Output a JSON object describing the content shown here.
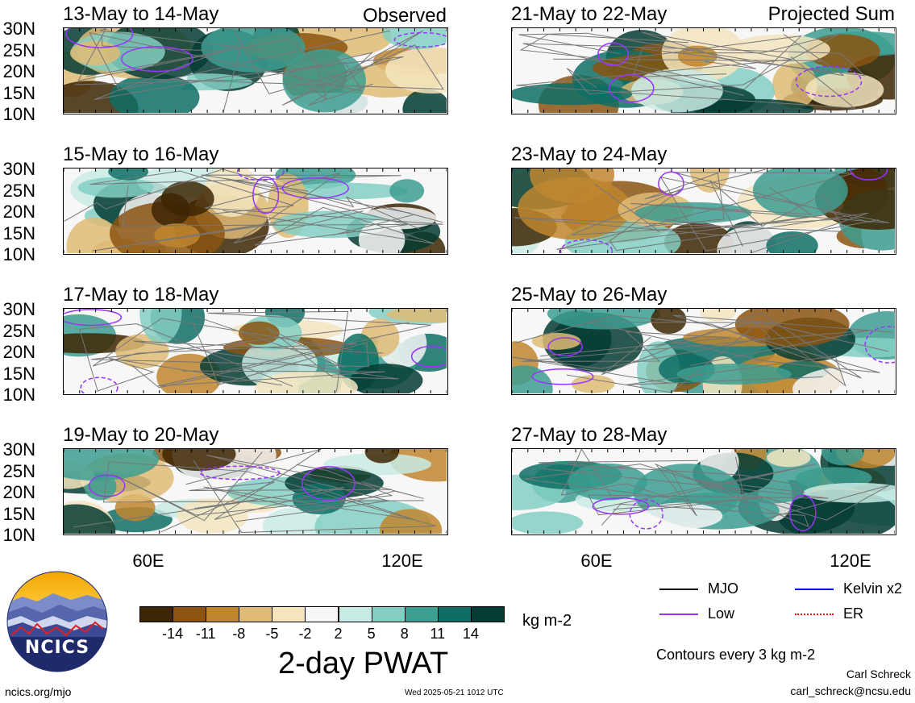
{
  "panels": [
    {
      "title": "13-May to 14-May",
      "tag": "Observed",
      "seed": 3
    },
    {
      "title": "15-May to 16-May",
      "tag": "",
      "seed": 7
    },
    {
      "title": "17-May to 18-May",
      "tag": "",
      "seed": 11
    },
    {
      "title": "19-May to 20-May",
      "tag": "",
      "seed": 17
    },
    {
      "title": "21-May to 22-May",
      "tag": "Projected Sum",
      "seed": 23
    },
    {
      "title": "23-May to 24-May",
      "tag": "",
      "seed": 29
    },
    {
      "title": "25-May to 26-May",
      "tag": "",
      "seed": 31
    },
    {
      "title": "27-May to 28-May",
      "tag": "",
      "seed": 37
    }
  ],
  "lat_labels": [
    "30N",
    "25N",
    "20N",
    "15N",
    "10N"
  ],
  "lon_labels": [
    "60E",
    "120E"
  ],
  "colorbar": {
    "colors": [
      "#3d2603",
      "#8b5410",
      "#c0862f",
      "#dfbb76",
      "#f5e5bf",
      "#f7f7f7",
      "#c9ebe5",
      "#84cfc3",
      "#3d9e92",
      "#0e6e65",
      "#053c33"
    ],
    "labels": [
      "-14",
      "-11",
      "-8",
      "-5",
      "-2",
      "2",
      "5",
      "8",
      "11",
      "14"
    ],
    "units": "kg m-2"
  },
  "title": "2-day PWAT",
  "legend": {
    "items": [
      {
        "label": "MJO",
        "color": "#000000"
      },
      {
        "label": "Kelvin x2",
        "color": "#0000ff"
      },
      {
        "label": "Low",
        "color": "#9933ff"
      },
      {
        "label": "ER",
        "color": "#ff0000"
      }
    ],
    "contours": "Contours every 3 kg m-2"
  },
  "logo": {
    "text": "NCICS"
  },
  "footer": {
    "left": "ncics.org/mjo",
    "center": "Wed 2025-05-21 1012 UTC",
    "author": "Carl Schreck",
    "email": "carl_schreck@ncsu.edu"
  }
}
